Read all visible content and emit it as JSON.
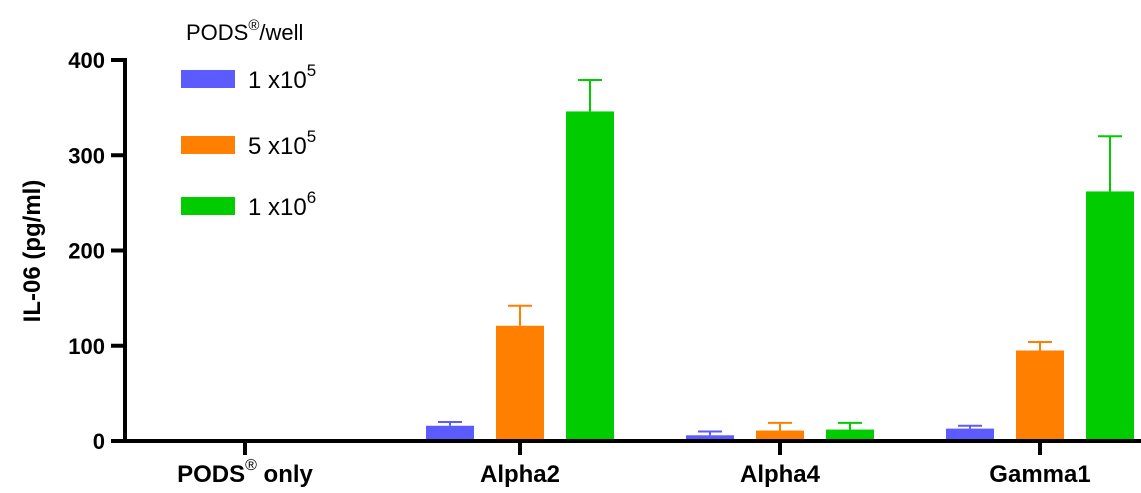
{
  "chart_data": {
    "type": "bar",
    "ylabel": "IL-06 (pg/ml)",
    "ylim": [
      0,
      400
    ],
    "yticks": [
      0,
      100,
      200,
      300,
      400
    ],
    "grid": false,
    "legend_placement": "top-left",
    "legend_title": {
      "text": "PODS",
      "sup": "®",
      "suffix": "/well"
    },
    "categories": [
      {
        "text": "PODS",
        "sup": "®",
        "suffix": " only"
      },
      {
        "text": "Alpha2",
        "sup": "",
        "suffix": ""
      },
      {
        "text": "Alpha4",
        "sup": "",
        "suffix": ""
      },
      {
        "text": "Gamma1",
        "sup": "",
        "suffix": ""
      }
    ],
    "series": [
      {
        "name": "1 x10",
        "sup": "5",
        "color": "#5b5bff",
        "values": [
          0,
          16,
          6,
          13
        ],
        "errors": [
          0,
          4,
          4,
          3
        ]
      },
      {
        "name": "5 x10",
        "sup": "5",
        "color": "#ff8000",
        "values": [
          0,
          121,
          11,
          95
        ],
        "errors": [
          0,
          21,
          8,
          9
        ]
      },
      {
        "name": "1 x10",
        "sup": "6",
        "color": "#00cc00",
        "values": [
          0,
          346,
          12,
          262
        ],
        "errors": [
          0,
          33,
          7,
          58
        ]
      }
    ]
  }
}
